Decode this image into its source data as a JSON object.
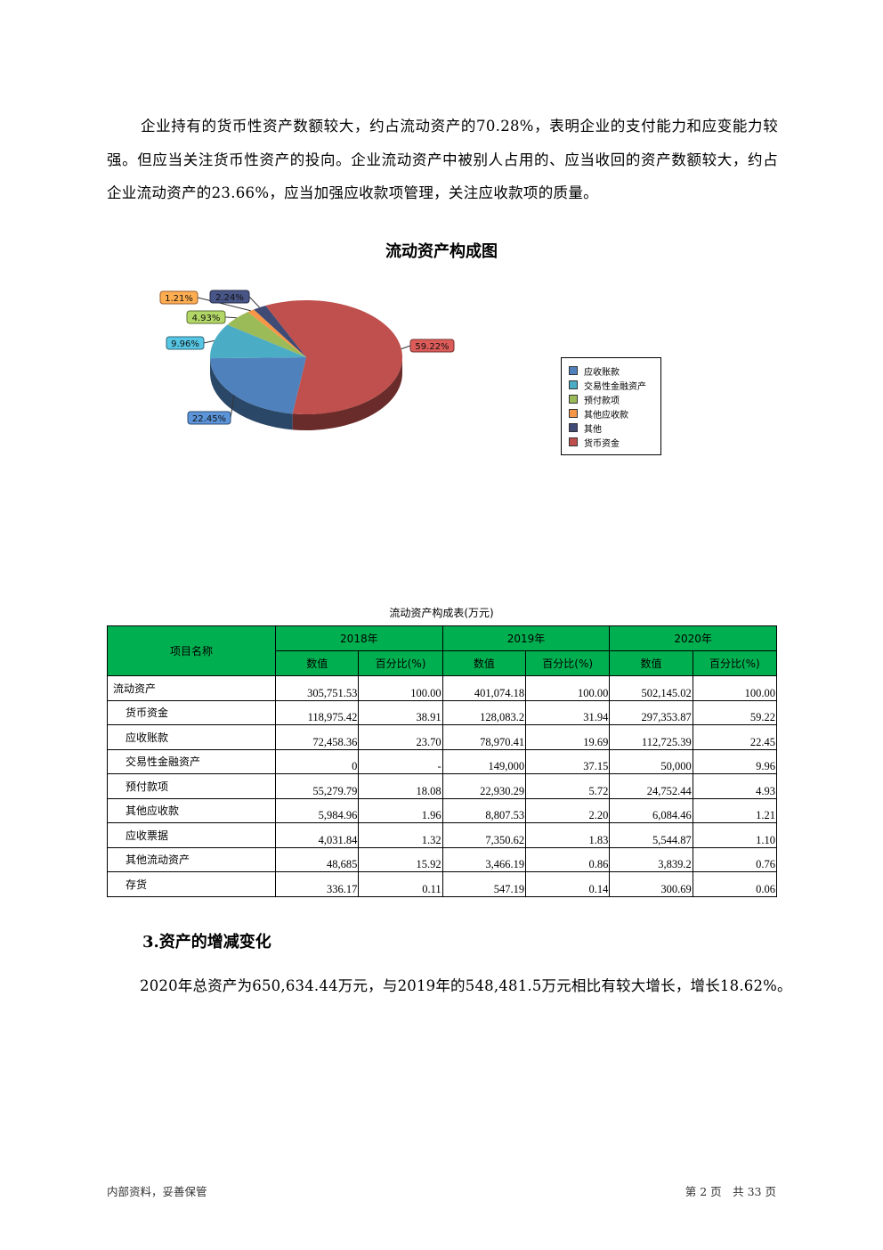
{
  "paragraph1": "企业持有的货币性资产数额较大，约占流动资产的70.28%，表明企业的支付能力和应变能力较强。但应当关注货币性资产的投向。企业流动资产中被别人占用的、应当收回的资产数额较大，约占企业流动资产的23.66%，应当加强应收款项管理，关注应收款项的质量。",
  "chart_data": {
    "type": "pie",
    "title": "流动资产构成图",
    "style": "3d",
    "legend_position": "right",
    "slices": [
      {
        "name": "货币资金",
        "value": 59.22,
        "label": "59.22%",
        "color": "#C0504D"
      },
      {
        "name": "应收账款",
        "value": 22.45,
        "label": "22.45%",
        "color": "#4F81BD"
      },
      {
        "name": "交易性金融资产",
        "value": 9.96,
        "label": "9.96%",
        "color": "#4BACC6"
      },
      {
        "name": "预付款项",
        "value": 4.93,
        "label": "4.93%",
        "color": "#9BBB59"
      },
      {
        "name": "其他应收款",
        "value": 1.21,
        "label": "1.21%",
        "color": "#F79646"
      },
      {
        "name": "其他",
        "value": 2.24,
        "label": "2.24%",
        "color": "#3F4A75"
      }
    ],
    "legend_order": [
      "应收账款",
      "交易性金融资产",
      "预付款项",
      "其他应收款",
      "其他",
      "货币资金"
    ]
  },
  "table": {
    "title": "流动资产构成表(万元)",
    "header_item": "项目名称",
    "years": [
      "2018年",
      "2019年",
      "2020年"
    ],
    "sub_headers": [
      "数值",
      "百分比(%)"
    ],
    "rows": [
      {
        "name": "流动资产",
        "level": 1,
        "cells": [
          "305,751.53",
          "100.00",
          "401,074.18",
          "100.00",
          "502,145.02",
          "100.00"
        ]
      },
      {
        "name": "货币资金",
        "level": 2,
        "cells": [
          "118,975.42",
          "38.91",
          "128,083.2",
          "31.94",
          "297,353.87",
          "59.22"
        ]
      },
      {
        "name": "应收账款",
        "level": 2,
        "cells": [
          "72,458.36",
          "23.70",
          "78,970.41",
          "19.69",
          "112,725.39",
          "22.45"
        ]
      },
      {
        "name": "交易性金融资产",
        "level": 2,
        "cells": [
          "0",
          "-",
          "149,000",
          "37.15",
          "50,000",
          "9.96"
        ]
      },
      {
        "name": "预付款项",
        "level": 2,
        "cells": [
          "55,279.79",
          "18.08",
          "22,930.29",
          "5.72",
          "24,752.44",
          "4.93"
        ]
      },
      {
        "name": "其他应收款",
        "level": 2,
        "cells": [
          "5,984.96",
          "1.96",
          "8,807.53",
          "2.20",
          "6,084.46",
          "1.21"
        ]
      },
      {
        "name": "应收票据",
        "level": 2,
        "cells": [
          "4,031.84",
          "1.32",
          "7,350.62",
          "1.83",
          "5,544.87",
          "1.10"
        ]
      },
      {
        "name": "其他流动资产",
        "level": 2,
        "cells": [
          "48,685",
          "15.92",
          "3,466.19",
          "0.86",
          "3,839.2",
          "0.76"
        ]
      },
      {
        "name": "存货",
        "level": 2,
        "cells": [
          "336.17",
          "0.11",
          "547.19",
          "0.14",
          "300.69",
          "0.06"
        ]
      }
    ]
  },
  "section_heading": "3.资产的增减变化",
  "paragraph2": "2020年总资产为650,634.44万元，与2019年的548,481.5万元相比有较大增长，增长18.62%。",
  "footer": {
    "left": "内部资料，妥善保管",
    "right": "第 2 页　共 33 页"
  },
  "colors": {
    "table_header": "#00B050"
  }
}
